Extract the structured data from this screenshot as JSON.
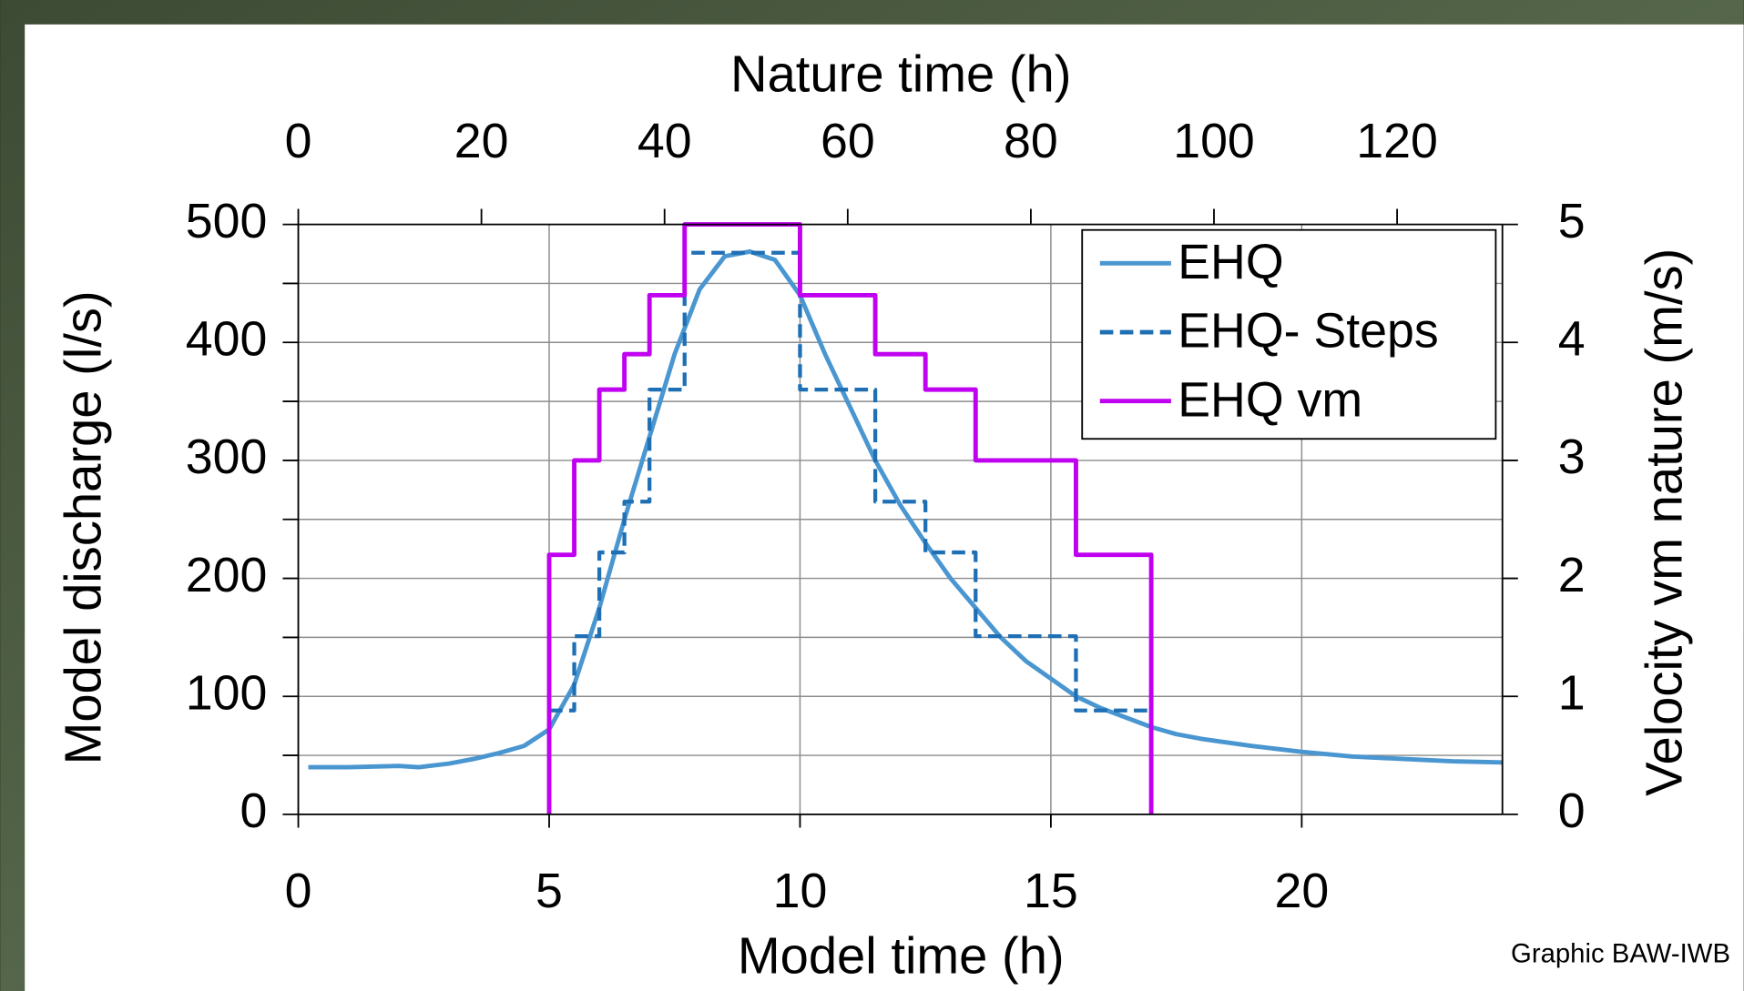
{
  "chart_data": {
    "type": "line",
    "x_title": "Model time (h)",
    "x2_title": "Nature time (h)",
    "y_title": "Model discharge (l/s)",
    "y2_title": "Velocity vm nature (m/s)",
    "xlim": [
      0,
      24
    ],
    "xticks": [
      0,
      5,
      10,
      15,
      20
    ],
    "x2lim": [
      0,
      131.5
    ],
    "x2ticks": [
      0,
      20,
      40,
      60,
      80,
      100,
      120
    ],
    "ylim": [
      0,
      500
    ],
    "yticks": [
      0,
      100,
      200,
      300,
      400,
      500
    ],
    "y_minor_grid": [
      50,
      150,
      250,
      350,
      450
    ],
    "y2lim": [
      0,
      5
    ],
    "y2ticks": [
      0,
      1,
      2,
      3,
      4,
      5
    ],
    "grid": true,
    "legend": "upper right",
    "series": [
      {
        "name": "EHQ",
        "color": "#4a96d0",
        "style": "solid",
        "x": [
          0.2,
          1,
          2,
          2.4,
          3,
          3.5,
          4,
          4.5,
          5,
          5.5,
          6,
          6.5,
          7,
          7.5,
          8,
          8.5,
          9,
          9.5,
          10,
          10.5,
          11,
          11.5,
          12,
          12.5,
          13,
          13.5,
          14,
          14.5,
          15,
          15.5,
          16,
          16.5,
          17,
          17.5,
          18,
          19,
          20,
          21,
          22,
          23,
          24
        ],
        "values": [
          40,
          40,
          41,
          40,
          43,
          47,
          52,
          58,
          72,
          110,
          175,
          250,
          320,
          390,
          445,
          473,
          477,
          470,
          440,
          390,
          345,
          300,
          262,
          230,
          200,
          175,
          150,
          130,
          115,
          100,
          90,
          82,
          74,
          68,
          64,
          58,
          53,
          49,
          47,
          45,
          44
        ]
      },
      {
        "name": "EHQ- Steps",
        "color": "#1f6fb5",
        "style": "dashed",
        "x": [
          5,
          5.5,
          5.5,
          6,
          6,
          6.5,
          6.5,
          7,
          7,
          7.7,
          7.7,
          10,
          10,
          11.5,
          11.5,
          12.5,
          12.5,
          13.5,
          13.5,
          15.5,
          15.5,
          17
        ],
        "values": [
          88,
          88,
          151,
          151,
          222,
          222,
          265,
          265,
          360,
          360,
          476,
          476,
          360,
          360,
          265,
          265,
          222,
          222,
          151,
          151,
          88,
          88
        ]
      },
      {
        "name": "EHQ vm",
        "color": "#c000f0",
        "style": "solid",
        "axis": "y2",
        "x": [
          5,
          5,
          5.5,
          5.5,
          6,
          6,
          6.5,
          6.5,
          7,
          7,
          7.7,
          7.7,
          10,
          10,
          11.5,
          11.5,
          12.5,
          12.5,
          13.5,
          13.5,
          15.5,
          15.5,
          17,
          17
        ],
        "values": [
          0,
          2.2,
          2.2,
          3,
          3,
          3.6,
          3.6,
          3.9,
          3.9,
          4.4,
          4.4,
          5,
          5,
          4.4,
          4.4,
          3.9,
          3.9,
          3.6,
          3.6,
          3,
          3,
          2.2,
          2.2,
          0
        ]
      }
    ]
  },
  "credit": "Graphic BAW-IWB"
}
